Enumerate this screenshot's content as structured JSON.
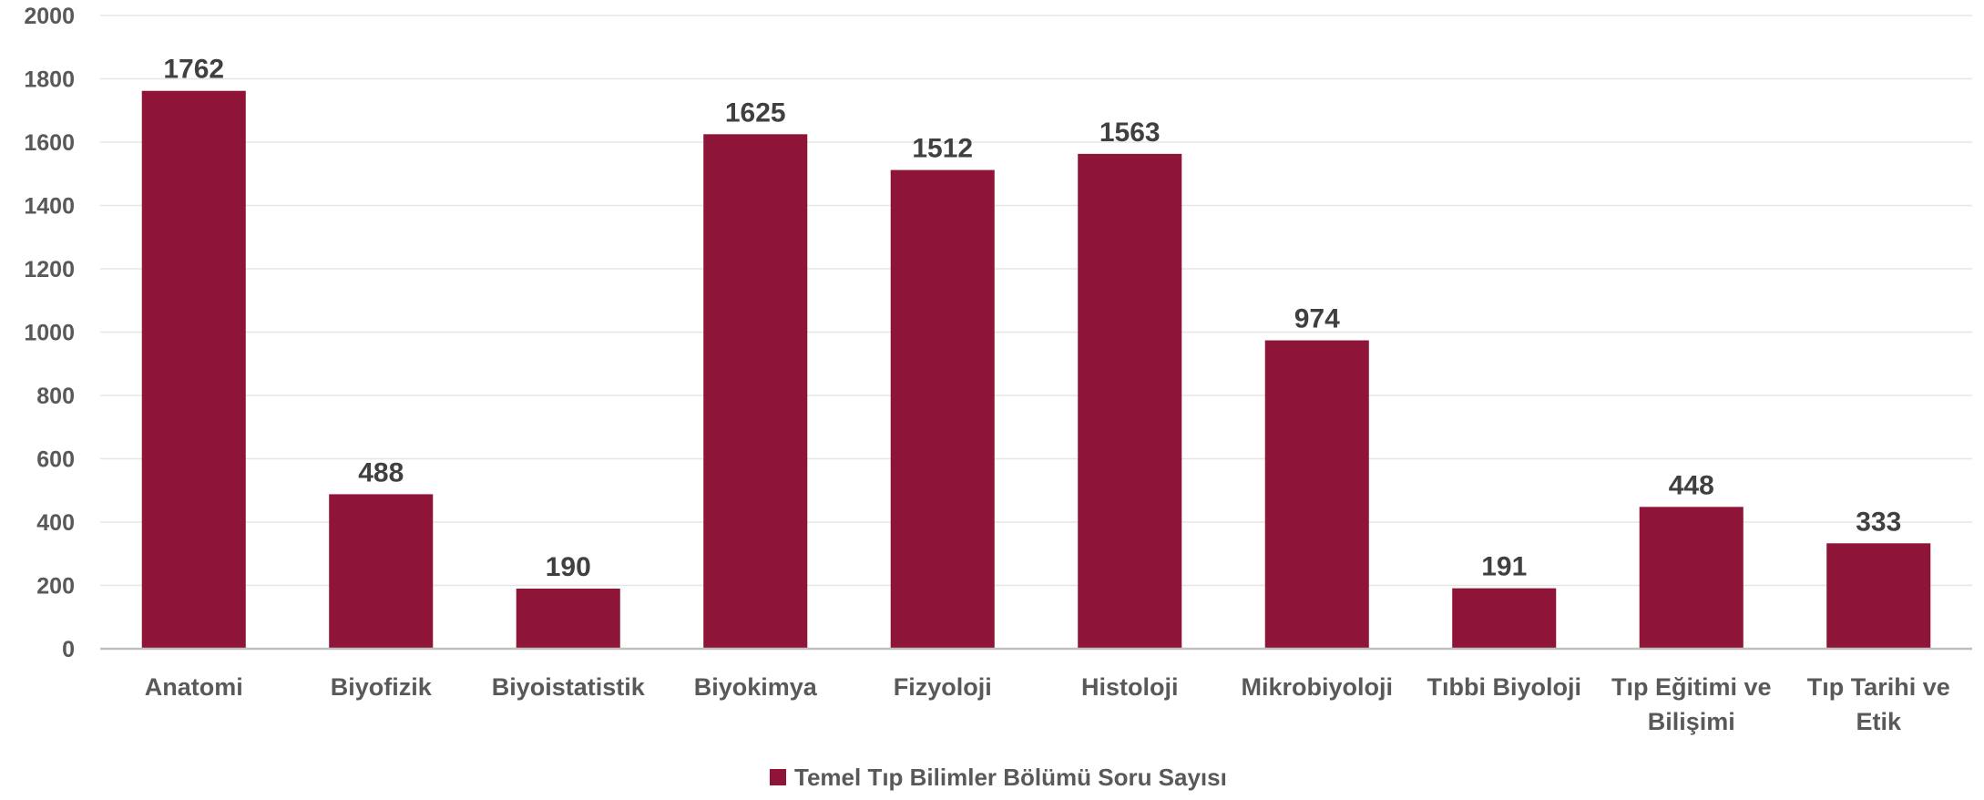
{
  "chart_data": {
    "type": "bar",
    "categories": [
      "Anatomi",
      "Biyofizik",
      "Biyoistatistik",
      "Biyokimya",
      "Fizyoloji",
      "Histoloji",
      "Mikrobiyoloji",
      "Tıbbi Biyoloji",
      "Tıp Eğitimi ve Bilişimi",
      "Tıp Tarihi ve Etik"
    ],
    "category_lines": [
      [
        "Anatomi"
      ],
      [
        "Biyofizik"
      ],
      [
        "Biyoistatistik"
      ],
      [
        "Biyokimya"
      ],
      [
        "Fizyoloji"
      ],
      [
        "Histoloji"
      ],
      [
        "Mikrobiyoloji"
      ],
      [
        "Tıbbi Biyoloji"
      ],
      [
        "Tıp Eğitimi ve",
        "Bilişimi"
      ],
      [
        "Tıp Tarihi ve",
        "Etik"
      ]
    ],
    "series": [
      {
        "name": "Temel Tıp Bilimler Bölümü Soru Sayısı",
        "values": [
          1762,
          488,
          190,
          1625,
          1512,
          1563,
          974,
          191,
          448,
          333
        ],
        "color": "#8e1538"
      }
    ],
    "ylim": [
      0,
      2000
    ],
    "yticks": [
      0,
      200,
      400,
      600,
      800,
      1000,
      1200,
      1400,
      1600,
      1800,
      2000
    ],
    "grid": true,
    "legend_position": "bottom-center",
    "data_labels": true,
    "colors": {
      "bar": "#8e1538",
      "text": "#595959",
      "data_label": "#404040",
      "grid": "#e6e6e6",
      "axis": "#bfbfbf"
    }
  }
}
